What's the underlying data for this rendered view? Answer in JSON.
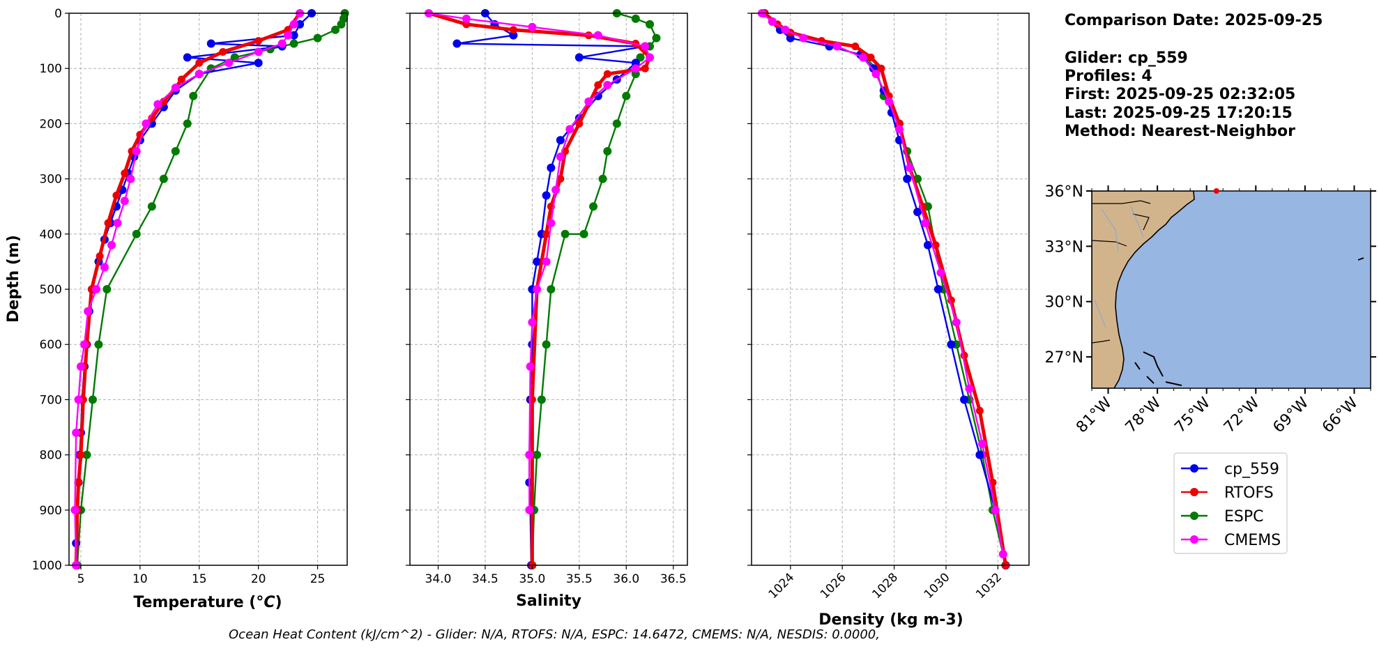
{
  "info": {
    "comparison_date": "Comparison Date: 2025-09-25",
    "glider": "Glider: cp_559",
    "profiles": "Profiles: 4",
    "first": "First: 2025-09-25 02:32:05",
    "last": "Last: 2025-09-25 17:20:15",
    "method": "Method: Nearest-Neighbor"
  },
  "footer": "Ocean Heat Content (kJ/cm^2) - Glider: N/A,  RTOFS: N/A,  ESPC: 14.6472,  CMEMS: N/A,  NESDIS: 0.0000,",
  "colors": {
    "cp_559": "#0000ee",
    "cp_559_raw": "#00e5ee",
    "RTOFS": "#ee0000",
    "ESPC": "#007a00",
    "CMEMS": "#ff00ff",
    "land": "#d2b48c",
    "ocean": "#97b6e1",
    "grid": "#b0b0b0"
  },
  "map": {
    "lat_ticks": [
      "36°N",
      "33°N",
      "30°N",
      "27°N"
    ],
    "lon_ticks": [
      "81°W",
      "78°W",
      "75°W",
      "72°W",
      "69°W",
      "66°W"
    ],
    "extent": {
      "lon": [
        -82,
        -65
      ],
      "lat": [
        25.3,
        36
      ]
    },
    "glider_position": {
      "lon": -74.4,
      "lat": 36.0
    }
  },
  "legend": [
    "cp_559",
    "RTOFS",
    "ESPC",
    "CMEMS"
  ],
  "chart_data": [
    {
      "type": "line",
      "xlabel": "Temperature (°C)",
      "ylabel": "Depth (m)",
      "xlim": [
        4,
        27.5
      ],
      "ylim": [
        1000,
        0
      ],
      "x_ticks": [
        5,
        10,
        15,
        20,
        25
      ],
      "y_ticks": [
        0,
        100,
        200,
        300,
        400,
        500,
        600,
        700,
        800,
        900,
        1000
      ],
      "grid": true,
      "series": [
        {
          "name": "cp_559",
          "x": [
            24.5,
            23.5,
            23,
            16,
            22,
            14,
            20,
            15,
            13,
            12,
            11,
            10,
            9.5,
            9,
            8.5,
            8,
            7.5,
            7,
            6.5,
            6,
            5.7,
            5.5,
            5.3,
            5.1,
            5,
            4.9,
            4.8,
            4.7,
            4.6,
            4.6
          ],
          "y": [
            0,
            20,
            40,
            55,
            60,
            80,
            90,
            110,
            140,
            170,
            200,
            230,
            260,
            290,
            320,
            350,
            380,
            410,
            450,
            500,
            540,
            600,
            640,
            700,
            760,
            800,
            850,
            900,
            960,
            1000
          ]
        },
        {
          "name": "RTOFS",
          "x": [
            23.5,
            22.5,
            20,
            17,
            15,
            13.5,
            13,
            12,
            11,
            10,
            9.3,
            8.7,
            8,
            7.3,
            6.6,
            5.9,
            5.5,
            5.2,
            5.0,
            4.8,
            4.7,
            4.6
          ],
          "y": [
            0,
            30,
            50,
            70,
            90,
            120,
            135,
            160,
            190,
            220,
            250,
            290,
            330,
            380,
            440,
            500,
            600,
            700,
            800,
            850,
            900,
            1000
          ]
        },
        {
          "name": "ESPC",
          "x": [
            27.3,
            27.2,
            27,
            26.5,
            25,
            23,
            21,
            18,
            16,
            14.5,
            14,
            13,
            12,
            11,
            9.7,
            7.2,
            6.5,
            6,
            5.5,
            5,
            4.7
          ],
          "y": [
            0,
            10,
            20,
            30,
            45,
            55,
            65,
            80,
            100,
            150,
            200,
            250,
            300,
            350,
            400,
            500,
            600,
            700,
            800,
            900,
            1000
          ]
        },
        {
          "name": "CMEMS",
          "x": [
            23.5,
            23,
            22.5,
            22,
            20,
            17.5,
            15,
            13,
            11.5,
            10.5,
            9.7,
            9.2,
            8.7,
            8.1,
            7.6,
            7,
            6.3,
            5.6,
            5.3,
            5.0,
            4.8,
            4.6,
            4.5,
            4.6
          ],
          "y": [
            0,
            20,
            40,
            55,
            70,
            90,
            110,
            135,
            165,
            200,
            250,
            300,
            340,
            380,
            420,
            460,
            500,
            540,
            600,
            640,
            700,
            760,
            900,
            1000
          ]
        }
      ]
    },
    {
      "type": "line",
      "xlabel": "Salinity",
      "xlim": [
        33.7,
        36.65
      ],
      "ylim": [
        1000,
        0
      ],
      "x_ticks": [
        34.0,
        34.5,
        35.0,
        35.5,
        36.0,
        36.5
      ],
      "grid": true,
      "series": [
        {
          "name": "cp_559",
          "x": [
            34.5,
            34.6,
            34.8,
            34.2,
            36.2,
            35.5,
            36.1,
            35.9,
            35.7,
            35.5,
            35.3,
            35.2,
            35.15,
            35.1,
            35.05,
            35.0,
            35.0,
            34.98,
            34.97,
            34.97,
            34.98,
            34.99
          ],
          "y": [
            0,
            20,
            40,
            55,
            60,
            80,
            90,
            120,
            150,
            190,
            230,
            280,
            330,
            400,
            450,
            500,
            600,
            700,
            800,
            850,
            900,
            1000
          ]
        },
        {
          "name": "RTOFS",
          "x": [
            33.9,
            34.3,
            34.8,
            35.6,
            36.1,
            36.25,
            36.2,
            35.8,
            35.7,
            35.5,
            35.35,
            35.3,
            35.2,
            35.15,
            35.05,
            35.0,
            35.0
          ],
          "y": [
            0,
            20,
            30,
            40,
            55,
            80,
            100,
            110,
            130,
            200,
            250,
            300,
            350,
            400,
            500,
            700,
            1000
          ]
        },
        {
          "name": "ESPC",
          "x": [
            35.9,
            36.1,
            36.25,
            36.32,
            36.25,
            36.15,
            36.1,
            36.0,
            35.9,
            35.8,
            35.75,
            35.65,
            35.55,
            35.35,
            35.2,
            35.15,
            35.1,
            35.05,
            35.02,
            35.0
          ],
          "y": [
            0,
            10,
            20,
            45,
            60,
            80,
            110,
            150,
            200,
            250,
            300,
            350,
            400,
            400,
            500,
            600,
            700,
            800,
            900,
            1000
          ]
        },
        {
          "name": "CMEMS",
          "x": [
            33.9,
            34.3,
            35.0,
            35.7,
            36.2,
            36.25,
            36.1,
            35.8,
            35.6,
            35.4,
            35.3,
            35.25,
            35.2,
            35.15,
            35.05,
            35.0,
            34.98,
            34.97,
            34.97
          ],
          "y": [
            0,
            10,
            25,
            40,
            60,
            80,
            100,
            130,
            160,
            210,
            260,
            320,
            380,
            450,
            500,
            560,
            640,
            800,
            900
          ]
        }
      ]
    },
    {
      "type": "line",
      "xlabel": "Density (kg m-3)",
      "xlim": [
        1022.5,
        1033.2
      ],
      "ylim": [
        1000,
        0
      ],
      "x_ticks": [
        1024,
        1026,
        1028,
        1030,
        1032
      ],
      "grid": true,
      "series": [
        {
          "name": "cp_559",
          "x": [
            1023,
            1023.3,
            1023.6,
            1024,
            1025.5,
            1026.7,
            1027.2,
            1027.6,
            1027.9,
            1028.2,
            1028.5,
            1028.9,
            1029.3,
            1029.7,
            1030.2,
            1030.7,
            1031.3,
            1031.9,
            1032.3
          ],
          "y": [
            0,
            15,
            30,
            45,
            60,
            75,
            100,
            140,
            180,
            230,
            300,
            360,
            420,
            500,
            600,
            700,
            800,
            900,
            1000
          ]
        },
        {
          "name": "RTOFS",
          "x": [
            1023,
            1023.5,
            1024,
            1025.2,
            1026.5,
            1027.1,
            1027.5,
            1027.8,
            1028.2,
            1028.6,
            1029.1,
            1029.6,
            1030.2,
            1030.7,
            1031.3,
            1031.8,
            1032.3
          ],
          "y": [
            0,
            20,
            35,
            50,
            60,
            80,
            100,
            150,
            200,
            280,
            350,
            420,
            520,
            620,
            720,
            850,
            1000
          ]
        },
        {
          "name": "ESPC",
          "x": [
            1026.9,
            1027.3,
            1027.6,
            1028.2,
            1028.5,
            1028.9,
            1029.3,
            1029.9,
            1030.4,
            1030.9,
            1031.4,
            1031.8,
            1032.3
          ],
          "y": [
            80,
            100,
            150,
            200,
            250,
            300,
            350,
            500,
            600,
            700,
            800,
            900,
            1000
          ]
        },
        {
          "name": "CMEMS",
          "x": [
            1022.9,
            1023.3,
            1023.8,
            1024.5,
            1025.8,
            1026.8,
            1027.3,
            1027.8,
            1028.2,
            1028.6,
            1029.2,
            1029.8,
            1030.4,
            1030.9,
            1031.4,
            1031.9,
            1032.2
          ],
          "y": [
            0,
            15,
            30,
            45,
            60,
            80,
            110,
            160,
            210,
            280,
            380,
            470,
            560,
            680,
            780,
            900,
            980
          ]
        }
      ]
    }
  ]
}
